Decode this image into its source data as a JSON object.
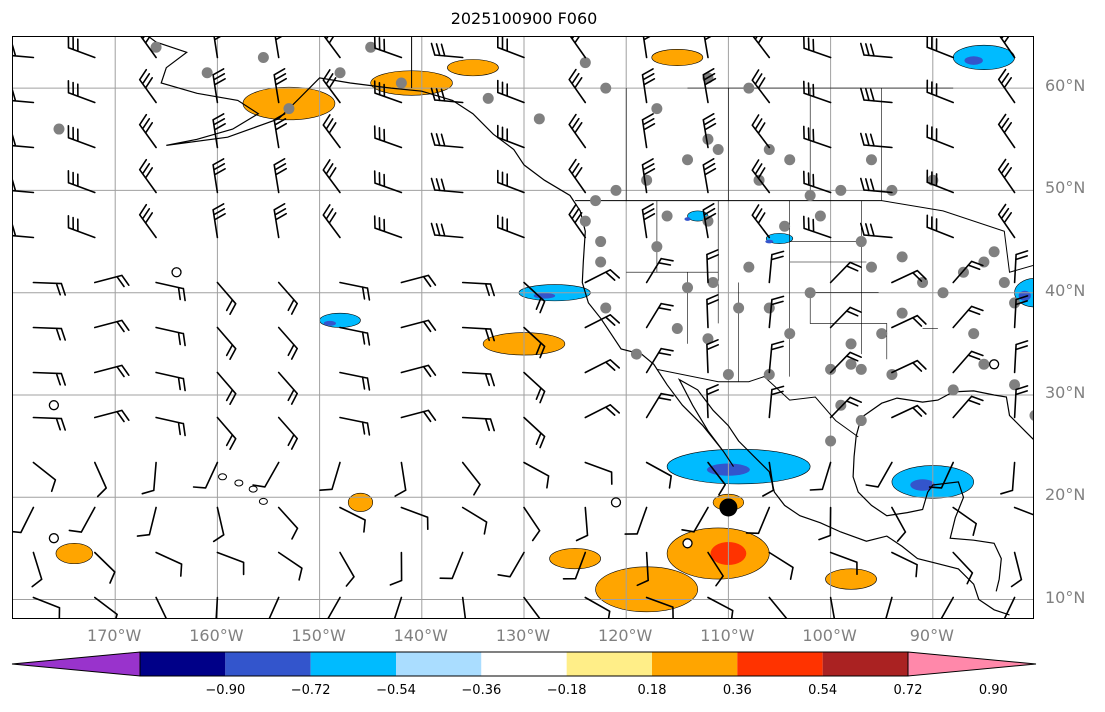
{
  "title": "2025100900 F060",
  "map": {
    "lon_range": [
      -180,
      -80
    ],
    "lat_range": [
      8,
      65
    ],
    "lat_ticks": [
      {
        "value": 60,
        "label": "60°N"
      },
      {
        "value": 50,
        "label": "50°N"
      },
      {
        "value": 40,
        "label": "40°N"
      },
      {
        "value": 30,
        "label": "30°N"
      },
      {
        "value": 20,
        "label": "20°N"
      },
      {
        "value": 10,
        "label": "10°N"
      }
    ],
    "lon_ticks": [
      {
        "value": -170,
        "label": "170°W"
      },
      {
        "value": -160,
        "label": "160°W"
      },
      {
        "value": -150,
        "label": "150°W"
      },
      {
        "value": -140,
        "label": "140°W"
      },
      {
        "value": -130,
        "label": "130°W"
      },
      {
        "value": -120,
        "label": "120°W"
      },
      {
        "value": -110,
        "label": "110°W"
      },
      {
        "value": -100,
        "label": "100°W"
      },
      {
        "value": -90,
        "label": "90°W"
      }
    ],
    "grid": true,
    "colors": {
      "grid": "#a0a0a0",
      "coast": "#000000",
      "station": "#808080",
      "barb": "#000000"
    }
  },
  "colorbar": {
    "labels": [
      "−0.90",
      "−0.72",
      "−0.54",
      "−0.36",
      "−0.18",
      "0.18",
      "0.36",
      "0.54",
      "0.72",
      "0.90"
    ],
    "colors": [
      "#9933cc",
      "#000088",
      "#3355cc",
      "#00bbff",
      "#aaddff",
      "#ffffff",
      "#ffee88",
      "#ffa500",
      "#ff3300",
      "#aa2222",
      "#ff88aa"
    ]
  },
  "contours": {
    "positive": [
      {
        "lon": -153,
        "lat": 58.5,
        "rx": 4.5,
        "ry": 1.6,
        "level": 0.36
      },
      {
        "lon": -141,
        "lat": 60.5,
        "rx": 4,
        "ry": 1.2,
        "level": 0.36
      },
      {
        "lon": -135,
        "lat": 62,
        "rx": 2.5,
        "ry": 0.8,
        "level": 0.36
      },
      {
        "lon": -115,
        "lat": 63,
        "rx": 2.5,
        "ry": 0.8,
        "level": 0.36
      },
      {
        "lon": -130,
        "lat": 35,
        "rx": 4,
        "ry": 1.1,
        "level": 0.36
      },
      {
        "lon": -111,
        "lat": 14.5,
        "rx": 5,
        "ry": 2.5,
        "level": 0.54
      },
      {
        "lon": -118,
        "lat": 11,
        "rx": 5,
        "ry": 2.2,
        "level": 0.36
      },
      {
        "lon": -125,
        "lat": 14,
        "rx": 2.5,
        "ry": 1.0,
        "level": 0.36
      },
      {
        "lon": -174,
        "lat": 14.5,
        "rx": 1.8,
        "ry": 1.0,
        "level": 0.36
      },
      {
        "lon": -146,
        "lat": 19.5,
        "rx": 1.2,
        "ry": 0.9,
        "level": 0.36
      },
      {
        "lon": -98,
        "lat": 12,
        "rx": 2.5,
        "ry": 1.0,
        "level": 0.36
      },
      {
        "lon": -110,
        "lat": 19.5,
        "rx": 1.5,
        "ry": 0.8,
        "level": 0.36
      }
    ],
    "negative": [
      {
        "lon": -109,
        "lat": 23,
        "rx": 7,
        "ry": 1.7,
        "level": -0.36
      },
      {
        "lon": -127,
        "lat": 40,
        "rx": 3.5,
        "ry": 0.8,
        "level": -0.36
      },
      {
        "lon": -148,
        "lat": 37.3,
        "rx": 2,
        "ry": 0.7,
        "level": -0.36
      },
      {
        "lon": -90,
        "lat": 21.5,
        "rx": 4,
        "ry": 1.6,
        "level": -0.36
      },
      {
        "lon": -85,
        "lat": 63,
        "rx": 3,
        "ry": 1.2,
        "level": -0.36
      },
      {
        "lon": -80,
        "lat": 40,
        "rx": 2,
        "ry": 1.4,
        "level": -0.36
      },
      {
        "lon": -113,
        "lat": 47.5,
        "rx": 1,
        "ry": 0.5,
        "level": -0.36
      },
      {
        "lon": -105,
        "lat": 45.3,
        "rx": 1.3,
        "ry": 0.5,
        "level": -0.36
      }
    ]
  },
  "stations": [
    [
      -175.5,
      56
    ],
    [
      -161,
      61.5
    ],
    [
      -166,
      64
    ],
    [
      -155.5,
      63
    ],
    [
      -153,
      58
    ],
    [
      -148,
      61.5
    ],
    [
      -145,
      64
    ],
    [
      -142,
      60.5
    ],
    [
      -133.5,
      59
    ],
    [
      -128.5,
      57
    ],
    [
      -124,
      62.5
    ],
    [
      -122,
      60
    ],
    [
      -117,
      58
    ],
    [
      -112,
      61
    ],
    [
      -108,
      60
    ],
    [
      -112,
      55
    ],
    [
      -111,
      54
    ],
    [
      -114,
      53
    ],
    [
      -106,
      54
    ],
    [
      -104,
      53
    ],
    [
      -96,
      53
    ],
    [
      -90,
      51
    ],
    [
      -94,
      50
    ],
    [
      -99,
      50
    ],
    [
      -102,
      49.5
    ],
    [
      -107,
      51
    ],
    [
      -118,
      51
    ],
    [
      -121,
      50
    ],
    [
      -123,
      49
    ],
    [
      -124,
      47
    ],
    [
      -122.5,
      45
    ],
    [
      -122.5,
      43
    ],
    [
      -116,
      47.5
    ],
    [
      -117,
      44.5
    ],
    [
      -112,
      47
    ],
    [
      -111.5,
      41
    ],
    [
      -108,
      42.5
    ],
    [
      -104.5,
      46.5
    ],
    [
      -101,
      47.5
    ],
    [
      -97,
      45
    ],
    [
      -96,
      42.5
    ],
    [
      -93,
      43.5
    ],
    [
      -91,
      41
    ],
    [
      -89,
      40
    ],
    [
      -87,
      42
    ],
    [
      -85,
      43
    ],
    [
      -84,
      44
    ],
    [
      -82,
      39
    ],
    [
      -83,
      41
    ],
    [
      -86,
      36
    ],
    [
      -88,
      30.5
    ],
    [
      -95,
      36
    ],
    [
      -97,
      32.5
    ],
    [
      -100,
      32.5
    ],
    [
      -106,
      32
    ],
    [
      -104,
      36
    ],
    [
      -110,
      32
    ],
    [
      -112,
      35.5
    ],
    [
      -115,
      36.5
    ],
    [
      -119,
      34
    ],
    [
      -122,
      38.5
    ],
    [
      -114,
      40.5
    ],
    [
      -109,
      38.5
    ],
    [
      -106,
      38.5
    ],
    [
      -102,
      40
    ],
    [
      -98,
      35
    ],
    [
      -98,
      33
    ],
    [
      -94,
      32
    ],
    [
      -99,
      29
    ],
    [
      -97,
      27.5
    ],
    [
      -100,
      25.5
    ],
    [
      -93,
      38
    ],
    [
      -85,
      33
    ],
    [
      -82,
      31
    ],
    [
      -80,
      28
    ]
  ],
  "circles": [
    [
      -164,
      42
    ],
    [
      -176,
      29
    ],
    [
      -176,
      16
    ],
    [
      -114,
      15.5
    ],
    [
      -121,
      19.5
    ],
    [
      -84,
      33
    ]
  ],
  "storm": {
    "lon": -110,
    "lat": 19
  }
}
